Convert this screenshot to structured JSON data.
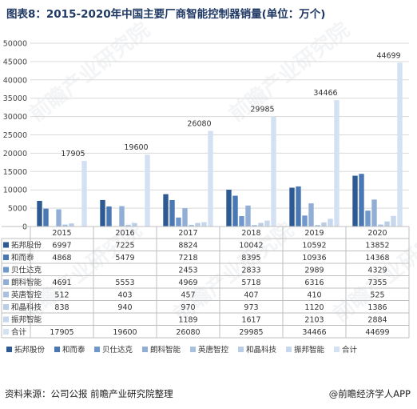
{
  "title": "图表8：2015-2020年中国主要厂商智能控制器销量(单位：万个)",
  "source": "资料来源：公司公报 前瞻产业研究院整理",
  "source_app": "@前瞻经济学人APP",
  "watermark": "前瞻产业研究院",
  "chart_data": {
    "type": "bar",
    "categories": [
      "2015",
      "2016",
      "2017",
      "2018",
      "2019",
      "2020"
    ],
    "ylim": [
      0,
      50000
    ],
    "yticks": [
      0,
      5000,
      10000,
      15000,
      20000,
      25000,
      30000,
      35000,
      40000,
      45000,
      50000
    ],
    "grid": true,
    "legend_position": "bottom",
    "series": [
      {
        "name": "拓邦股份",
        "color": "#2e5a94",
        "values": [
          6997,
          7225,
          8824,
          10042,
          10592,
          13852
        ],
        "labels": [
          "6997",
          "7225",
          "8824",
          "10042",
          "10592",
          "13852"
        ]
      },
      {
        "name": "和而泰",
        "color": "#4a78b4",
        "values": [
          4868,
          5479,
          7218,
          8395,
          10936,
          14368
        ],
        "labels": [
          "4868",
          "5479",
          "7218",
          "8395",
          "10936",
          "14368"
        ]
      },
      {
        "name": "贝仕达克",
        "color": "#7198cc",
        "values": [
          0,
          0,
          2453,
          2833,
          2989,
          4329
        ],
        "labels": [
          "",
          "",
          "2453",
          "2833",
          "2989",
          "4329"
        ]
      },
      {
        "name": "朗科智能",
        "color": "#91afd6",
        "values": [
          4691,
          5553,
          4969,
          5718,
          6316,
          7355
        ],
        "labels": [
          "4691",
          "5553",
          "4969",
          "5718",
          "6316",
          "7355"
        ]
      },
      {
        "name": "英唐智控",
        "color": "#a9c1e1",
        "values": [
          512,
          403,
          457,
          407,
          410,
          525
        ],
        "labels": [
          "512",
          "403",
          "457",
          "407",
          "410",
          "525"
        ]
      },
      {
        "name": "和晶科技",
        "color": "#b9cde7",
        "values": [
          838,
          940,
          970,
          973,
          1120,
          1386
        ],
        "labels": [
          "838",
          "940",
          "970",
          "973",
          "1120",
          "1386"
        ]
      },
      {
        "name": "振邦智能",
        "color": "#c6d7ee",
        "values": [
          0,
          0,
          1189,
          1617,
          2103,
          2884
        ],
        "labels": [
          "",
          "",
          "1189",
          "1617",
          "2103",
          "2884"
        ]
      },
      {
        "name": "合计",
        "color": "#d3e1f3",
        "values": [
          17905,
          19600,
          26080,
          29985,
          34466,
          44699
        ],
        "labels": [
          "17905",
          "19600",
          "26080",
          "29985",
          "34466",
          "44699"
        ]
      }
    ],
    "total_labels": [
      "17905",
      "19600",
      "26080",
      "29985",
      "34466",
      "44699"
    ]
  }
}
